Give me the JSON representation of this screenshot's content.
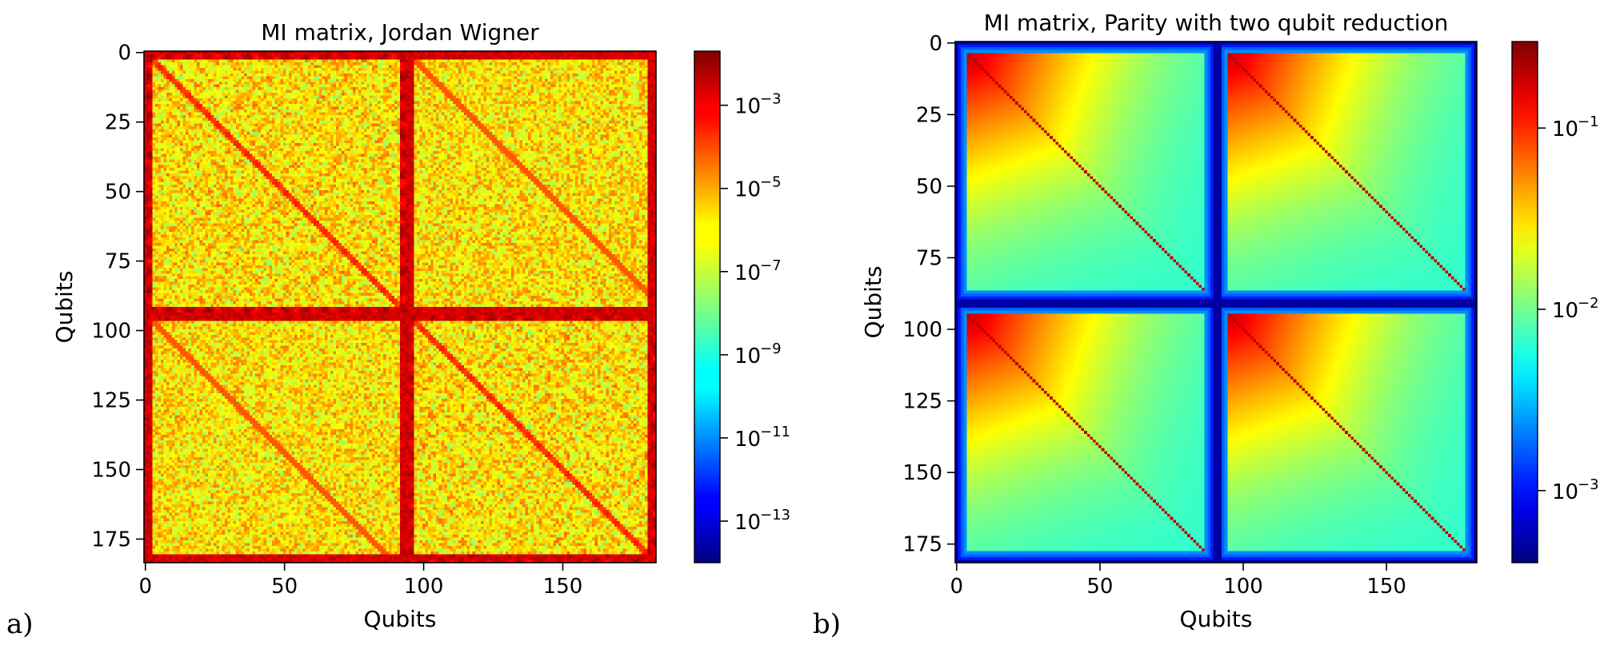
{
  "chart_data": [
    {
      "type": "heatmap",
      "panel_label": "a)",
      "title": "MI matrix, Jordan Wigner",
      "xlabel": "Qubits",
      "ylabel": "Qubits",
      "n": 184,
      "xlim": [
        0,
        183
      ],
      "ylim": [
        183,
        0
      ],
      "x_ticks": [
        "0",
        "50",
        "100",
        "150"
      ],
      "x_tick_values": [
        0,
        50,
        100,
        150
      ],
      "y_ticks": [
        "0",
        "25",
        "50",
        "75",
        "100",
        "125",
        "150",
        "175"
      ],
      "y_tick_values": [
        0,
        25,
        50,
        75,
        100,
        125,
        150,
        175
      ],
      "colormap": "jet",
      "color_scale": "log",
      "colorbar": {
        "range": [
          1e-14,
          0.02
        ],
        "tick_labels": [
          "10",
          "10",
          "10",
          "10",
          "10",
          "10"
        ],
        "tick_exponents": [
          "−3",
          "−5",
          "−7",
          "−9",
          "−11",
          "−13"
        ],
        "tick_values": [
          0.001,
          1e-05,
          1e-07,
          1e-09,
          1e-11,
          1e-13
        ]
      },
      "block_split": 94,
      "description_values": {
        "background_level": 1e-06,
        "boundary_band_level": 0.002,
        "diagonal_level": 0.0001
      }
    },
    {
      "type": "heatmap",
      "panel_label": "b)",
      "title": "MI matrix, Parity with two qubit reduction",
      "xlabel": "Qubits",
      "ylabel": "Qubits",
      "n": 182,
      "xlim": [
        0,
        181
      ],
      "ylim": [
        181,
        0
      ],
      "x_ticks": [
        "0",
        "50",
        "100",
        "150"
      ],
      "x_tick_values": [
        0,
        50,
        100,
        150
      ],
      "y_ticks": [
        "0",
        "25",
        "50",
        "75",
        "100",
        "125",
        "150",
        "175"
      ],
      "y_tick_values": [
        0,
        25,
        50,
        75,
        100,
        125,
        150,
        175
      ],
      "colormap": "jet",
      "color_scale": "log",
      "colorbar": {
        "range": [
          0.0004,
          0.3
        ],
        "tick_labels": [
          "10",
          "10",
          "10"
        ],
        "tick_exponents": [
          "−1",
          "−2",
          "−3"
        ],
        "tick_values": [
          0.1,
          0.01,
          0.001
        ]
      },
      "block_split": 91,
      "description_values": {
        "corner_peak": 0.25,
        "block_floor": 0.006,
        "boundary_level": 0.0005
      }
    }
  ]
}
